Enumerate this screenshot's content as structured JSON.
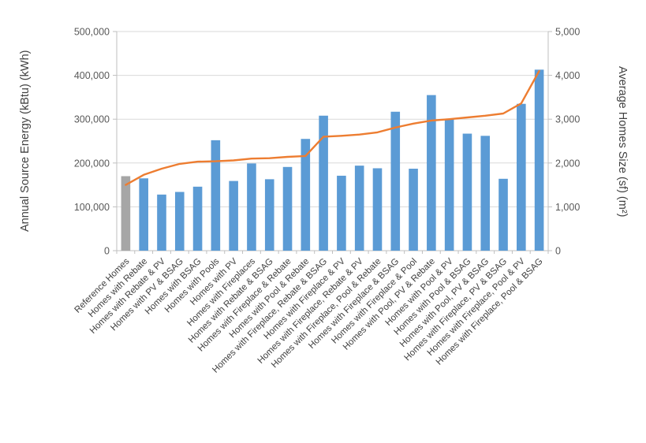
{
  "chart_data": {
    "type": "bar",
    "subtype": "combo-bar-line",
    "title": "",
    "legend": "none",
    "grid": true,
    "categories": [
      "Reference Homes",
      "Homes with Rebate",
      "Homes with Rebate & PV",
      "Homes with PV & BSAG",
      "Homes with BSAG",
      "Homes with Pools",
      "Homes with PV",
      "Homes with Fireplaces",
      "Homes with Rebate & BSAG",
      "Homes with Fireplace & Rebate",
      "Homes with Pool & Rebate",
      "Homes with Fireplace, Rebate & BSAG",
      "Homes with Fireplace & PV",
      "Homes with Fireplace, Rebate & PV",
      "Homes with Fireplace, Pool & Rebate",
      "Homes with Fireplace & BSAG",
      "Homes with Fireplace & Pool",
      "Homes with Pool, PV & Rebate",
      "Homes with Pool & PV",
      "Homes with Pool & BSAG",
      "Homes with Pool, PV & BSAG",
      "Homes with Fireplace, PV & BSAG",
      "Homes with Fireplace, Pool & PV",
      "Homes with Fireplace, Pool & BSAG"
    ],
    "series": [
      {
        "name": "Annual Source Energy",
        "type": "bar",
        "axis": "left",
        "values": [
          170000,
          165000,
          128000,
          134000,
          146000,
          252000,
          159000,
          199000,
          163000,
          191000,
          255000,
          308000,
          171000,
          194000,
          188000,
          317000,
          187000,
          355000,
          300000,
          267000,
          262000,
          164000,
          335000,
          413000
        ],
        "highlight_index": 0
      },
      {
        "name": "Average Homes Size",
        "type": "line",
        "axis": "right",
        "values": [
          1500,
          1730,
          1870,
          1980,
          2030,
          2040,
          2060,
          2100,
          2110,
          2140,
          2160,
          2600,
          2620,
          2650,
          2700,
          2810,
          2900,
          2970,
          3000,
          3040,
          3080,
          3130,
          3360,
          4100
        ]
      }
    ],
    "left_axis": {
      "title": "Annual Source Energy (kBtu) (kWh)",
      "min": 0,
      "max": 500000,
      "step": 100000,
      "tick_labels": [
        "0",
        "100,000",
        "200,000",
        "300,000",
        "400,000",
        "500,000"
      ]
    },
    "right_axis": {
      "title": "Average Homes Size (sf) (m²)",
      "min": 0,
      "max": 5000,
      "step": 1000,
      "tick_labels": [
        "0",
        "1,000",
        "2,000",
        "3,000",
        "4,000",
        "5,000"
      ]
    }
  },
  "colors": {
    "bar": "#5B9BD5",
    "reference_bar": "#A6A6A6",
    "line": "#ED7D31",
    "gridline": "#D9D9D9",
    "axis_line": "#BFBFBF",
    "tick_label": "#595959",
    "category_label": "#3F3F3F",
    "axis_title": "#404040",
    "background": "#FFFFFF"
  }
}
